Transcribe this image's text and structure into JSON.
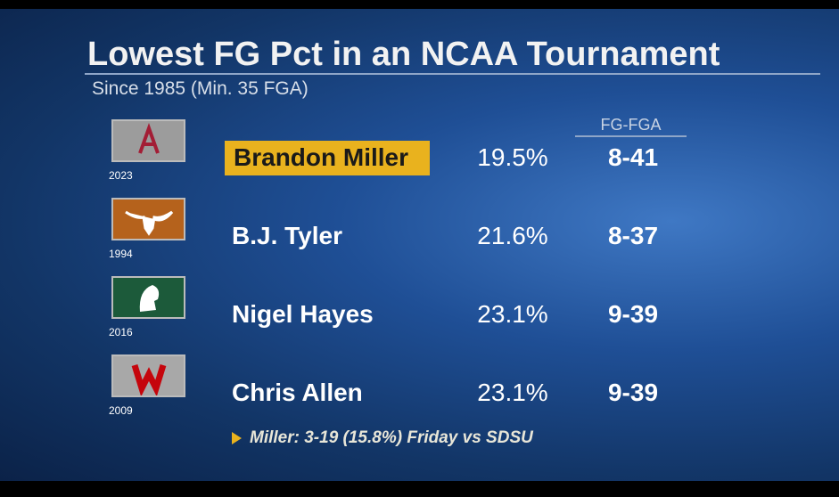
{
  "header": {
    "title": "Lowest FG Pct in an NCAA Tournament",
    "subtitle": "Since 1985 (Min. 35 FGA)"
  },
  "table": {
    "columns": [
      "FG-FGA"
    ],
    "rows": [
      {
        "year": "2023",
        "player": "Brandon Miller",
        "pct": "19.5%",
        "fg_fga": "8-41"
      },
      {
        "year": "1994",
        "player": "B.J. Tyler",
        "pct": "21.6%",
        "fg_fga": "8-37"
      },
      {
        "year": "2016",
        "player": "Nigel Hayes",
        "pct": "23.1%",
        "fg_fga": "9-39"
      },
      {
        "year": "2009",
        "player": "Chris Allen",
        "pct": "23.1%",
        "fg_fga": "9-39"
      }
    ]
  },
  "footnote": "Miller: 3-19 (15.8%) Friday vs SDSU"
}
